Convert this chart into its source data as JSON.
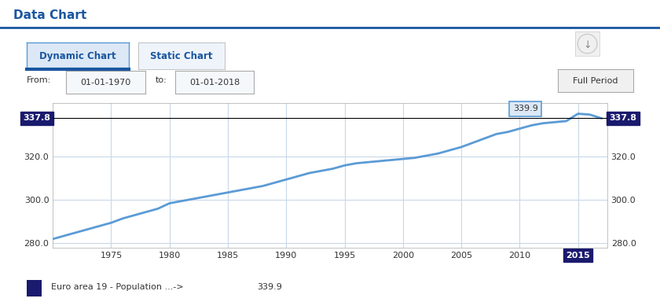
{
  "title": "Data Chart",
  "title_color": "#1a56a0",
  "bg_color": "#ffffff",
  "chart_bg": "#ffffff",
  "header_line_color": "#1a56a0",
  "button1_text": "Dynamic Chart",
  "button2_text": "Static Chart",
  "from_label": "From:",
  "from_date": "01-01-1970",
  "to_label": "to:",
  "to_date": "01-01-2018",
  "full_period_btn": "Full Period",
  "line_color": "#5b9bd5",
  "line_width": 2.0,
  "crosshair_color": "#000000",
  "crosshair_value": 337.8,
  "crosshair_label_color": "#1a1a6e",
  "tooltip_value": 339.9,
  "tooltip_year": 2010,
  "highlight_year": 2015,
  "highlight_year_color": "#1a1a6e",
  "ylabel_left": "",
  "ylabel_right": "",
  "xlim": [
    1970,
    2017.5
  ],
  "ylim": [
    278,
    345
  ],
  "yticks": [
    280.0,
    300.0,
    320.0
  ],
  "xticks": [
    1975,
    1980,
    1985,
    1990,
    1995,
    2000,
    2005,
    2010,
    2015
  ],
  "legend_color": "#1a1a6e",
  "legend_text": "Euro area 19 - Population ...->",
  "legend_value": "339.9",
  "grid_color": "#c8d8e8",
  "years": [
    1970,
    1971,
    1972,
    1973,
    1974,
    1975,
    1976,
    1977,
    1978,
    1979,
    1980,
    1981,
    1982,
    1983,
    1984,
    1985,
    1986,
    1987,
    1988,
    1989,
    1990,
    1991,
    1992,
    1993,
    1994,
    1995,
    1996,
    1997,
    1998,
    1999,
    2000,
    2001,
    2002,
    2003,
    2004,
    2005,
    2006,
    2007,
    2008,
    2009,
    2010,
    2011,
    2012,
    2013,
    2014,
    2015,
    2016,
    2017
  ],
  "values": [
    282.0,
    283.5,
    285.0,
    286.5,
    288.0,
    289.5,
    291.5,
    293.0,
    294.5,
    296.0,
    298.5,
    299.5,
    300.5,
    301.5,
    302.5,
    303.5,
    304.5,
    305.5,
    306.5,
    308.0,
    309.5,
    311.0,
    312.5,
    313.5,
    314.5,
    316.0,
    317.0,
    317.5,
    318.0,
    318.5,
    319.0,
    319.5,
    320.5,
    321.5,
    323.0,
    324.5,
    326.5,
    328.5,
    330.5,
    331.5,
    333.0,
    334.5,
    335.5,
    336.0,
    336.5,
    339.9,
    339.5,
    337.8
  ]
}
